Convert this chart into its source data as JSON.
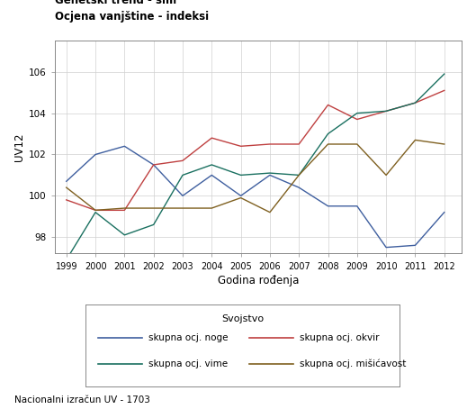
{
  "title_line1": "Genetski trend - sim",
  "title_line2": "Ocjena vanjštine - indeksi",
  "xlabel": "Godina rođenja",
  "ylabel": "UV12",
  "footnote": "Nacionalni izračun UV - 1703",
  "legend_title": "Svojstvo",
  "years": [
    1999,
    2000,
    2001,
    2002,
    2003,
    2004,
    2005,
    2006,
    2007,
    2008,
    2009,
    2010,
    2011,
    2012
  ],
  "series": {
    "skupna ocj. noge": {
      "color": "#3F5F9F",
      "values": [
        100.7,
        102.0,
        102.4,
        101.5,
        100.0,
        101.0,
        100.0,
        101.0,
        100.4,
        99.5,
        99.5,
        97.5,
        97.6,
        99.2
      ]
    },
    "skupna ocj. okvir": {
      "color": "#BF4040",
      "values": [
        99.8,
        99.3,
        99.3,
        101.5,
        101.7,
        102.8,
        102.4,
        102.5,
        102.5,
        104.4,
        103.7,
        104.1,
        104.5,
        105.1
      ]
    },
    "skupna ocj. vime": {
      "color": "#1A7060",
      "values": [
        96.9,
        99.2,
        98.1,
        98.6,
        101.0,
        101.5,
        101.0,
        101.1,
        101.0,
        103.0,
        104.0,
        104.1,
        104.5,
        105.9
      ]
    },
    "skupna ocj. mišićavost": {
      "color": "#7F6020",
      "values": [
        100.4,
        99.3,
        99.4,
        99.4,
        99.4,
        99.4,
        99.9,
        99.2,
        101.0,
        102.5,
        102.5,
        101.0,
        102.7,
        102.5
      ]
    }
  },
  "ylim": [
    97.2,
    107.5
  ],
  "yticks": [
    98,
    100,
    102,
    104,
    106
  ],
  "grid_color": "#d0d0d0"
}
